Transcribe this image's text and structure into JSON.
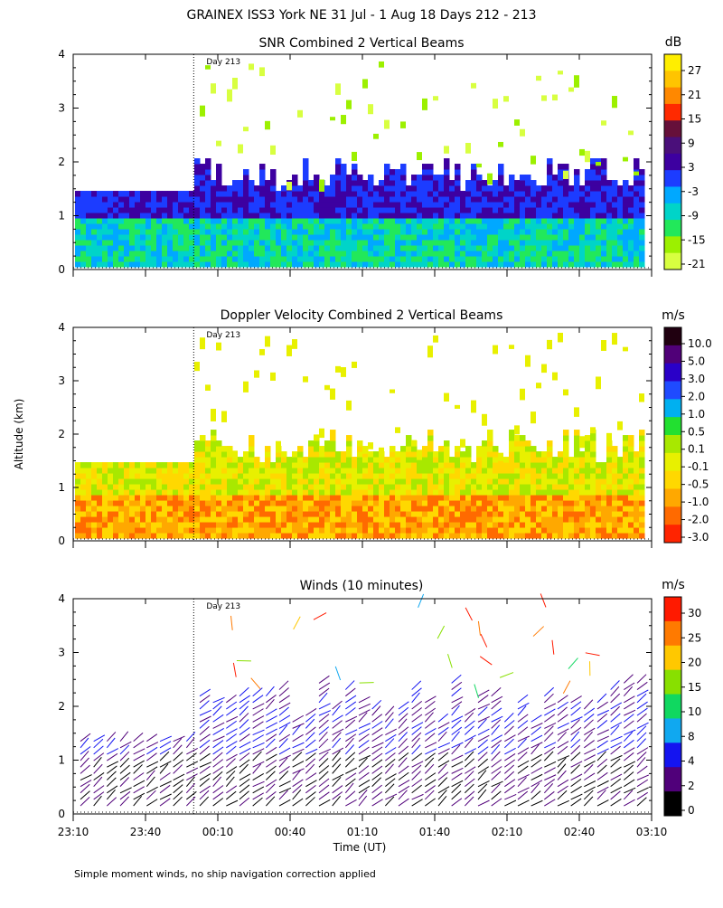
{
  "page": {
    "title": "GRAINEX ISS3 York NE  31 Jul -  1 Aug 18 Days 212 - 213",
    "footnote": "Simple moment winds, no ship navigation correction applied",
    "shared_ylabel": "Altitude (km)",
    "shared_xlabel": "Time (UT)",
    "day_marker_label": "Day 213"
  },
  "chart_data": [
    {
      "type": "heatmap",
      "title": "SNR Combined 2 Vertical Beams",
      "xlabel": "Time (UT)",
      "ylabel": "Altitude (km)",
      "x_ticks": [
        "23:10",
        "23:40",
        "00:10",
        "00:40",
        "01:10",
        "01:40",
        "02:10",
        "02:40",
        "03:10"
      ],
      "y_ticks": [
        "0",
        "1",
        "2",
        "3",
        "4"
      ],
      "ylim": [
        0,
        4
      ],
      "xlim_minutes_from_2310": [
        0,
        240
      ],
      "day_marker_minutes": 50,
      "colorbar_unit": "dB",
      "colorbar_labels": [
        "27",
        "21",
        "15",
        "9",
        "3",
        "-3",
        "-9",
        "-15",
        "-21"
      ],
      "colorbar_colors": [
        "#ffee00",
        "#ffc400",
        "#ff8800",
        "#ff2a00",
        "#66103a",
        "#4a0f7a",
        "#3d00a0",
        "#1c3cff",
        "#00a8ff",
        "#00d4c8",
        "#22e85a",
        "#9cf000",
        "#d8ff40"
      ]
    },
    {
      "type": "heatmap",
      "title": "Doppler Velocity Combined 2 Vertical Beams",
      "xlabel": "Time (UT)",
      "ylabel": "Altitude (km)",
      "x_ticks": [
        "23:10",
        "23:40",
        "00:10",
        "00:40",
        "01:10",
        "01:40",
        "02:10",
        "02:40",
        "03:10"
      ],
      "y_ticks": [
        "0",
        "1",
        "2",
        "3",
        "4"
      ],
      "ylim": [
        0,
        4
      ],
      "xlim_minutes_from_2310": [
        0,
        240
      ],
      "day_marker_minutes": 50,
      "colorbar_unit": "m/s",
      "colorbar_labels": [
        "10.0",
        "5.0",
        "3.0",
        "2.0",
        "1.0",
        "0.5",
        "0.1",
        "-0.1",
        "-0.5",
        "-1.0",
        "-2.0",
        "-3.0"
      ],
      "colorbar_colors": [
        "#200010",
        "#500078",
        "#2a00c8",
        "#1f4bff",
        "#00b0f0",
        "#22e030",
        "#a8e800",
        "#e8f000",
        "#ffd800",
        "#ffa800",
        "#ff6a00",
        "#ff2400"
      ]
    },
    {
      "type": "scatter",
      "title": "Winds (10 minutes)",
      "xlabel": "Time (UT)",
      "ylabel": "Altitude (km)",
      "x_ticks": [
        "23:10",
        "23:40",
        "00:10",
        "00:40",
        "01:10",
        "01:40",
        "02:10",
        "02:40",
        "03:10"
      ],
      "y_ticks": [
        "0",
        "1",
        "2",
        "3",
        "4"
      ],
      "ylim": [
        0,
        4
      ],
      "xlim_minutes_from_2310": [
        0,
        240
      ],
      "day_marker_minutes": 50,
      "colorbar_unit": "m/s",
      "colorbar_labels": [
        "30",
        "25",
        "20",
        "15",
        "10",
        "8",
        "4",
        "2",
        "0"
      ],
      "colorbar_colors": [
        "#ff1a00",
        "#ff7a00",
        "#ffc800",
        "#88e000",
        "#10d860",
        "#10a8f0",
        "#1414f0",
        "#50007a",
        "#000000"
      ]
    }
  ]
}
